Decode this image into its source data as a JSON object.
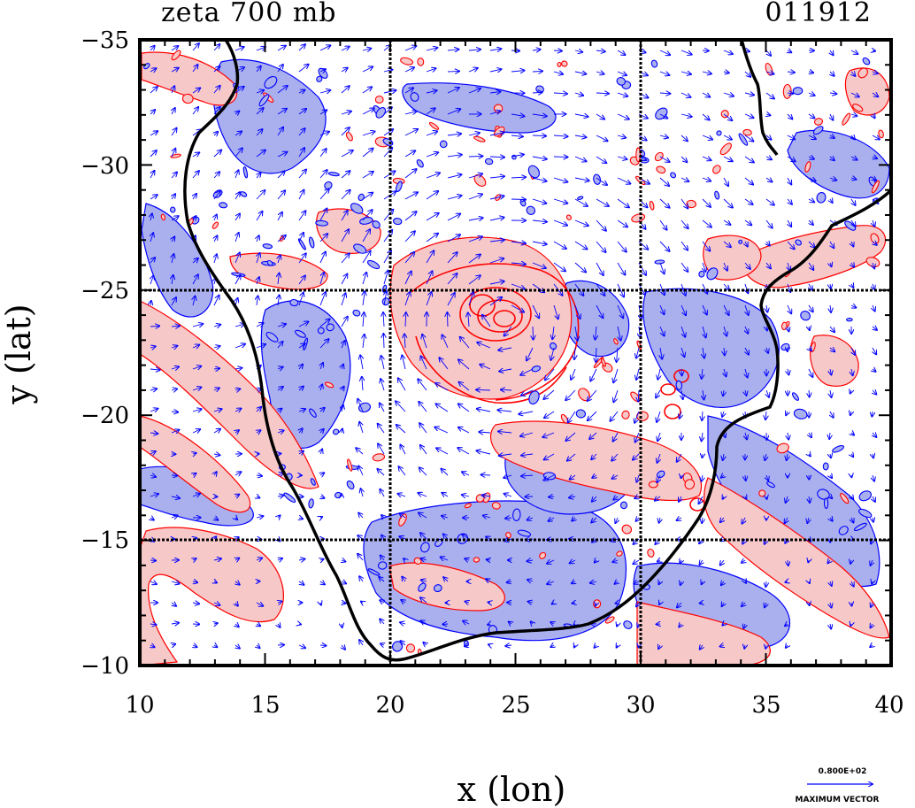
{
  "title_left": "zeta 700 mb",
  "title_right": "011912",
  "x_axis_label": "x (lon)",
  "y_axis_label": "y (lat)",
  "x_ticks": [
    "10",
    "15",
    "20",
    "25",
    "30",
    "35",
    "40"
  ],
  "y_ticks": [
    "−35",
    "−30",
    "−25",
    "−20",
    "−15",
    "−10"
  ],
  "vector_key": {
    "value": "0.800E+02",
    "label": "MAXIMUM VECTOR"
  },
  "map": {
    "lon_range": [
      10,
      40
    ],
    "lat_range": [
      -35,
      -10
    ],
    "gridlines_lon": [
      20,
      30
    ],
    "gridlines_lat": [
      -25,
      -15
    ],
    "colors": {
      "positive_fill": "#f7c8c8",
      "positive_line": "#ff0000",
      "negative_fill": "#aab0ee",
      "negative_line": "#0000ff",
      "vector": "#0000ff",
      "coast": "#000000"
    }
  }
}
